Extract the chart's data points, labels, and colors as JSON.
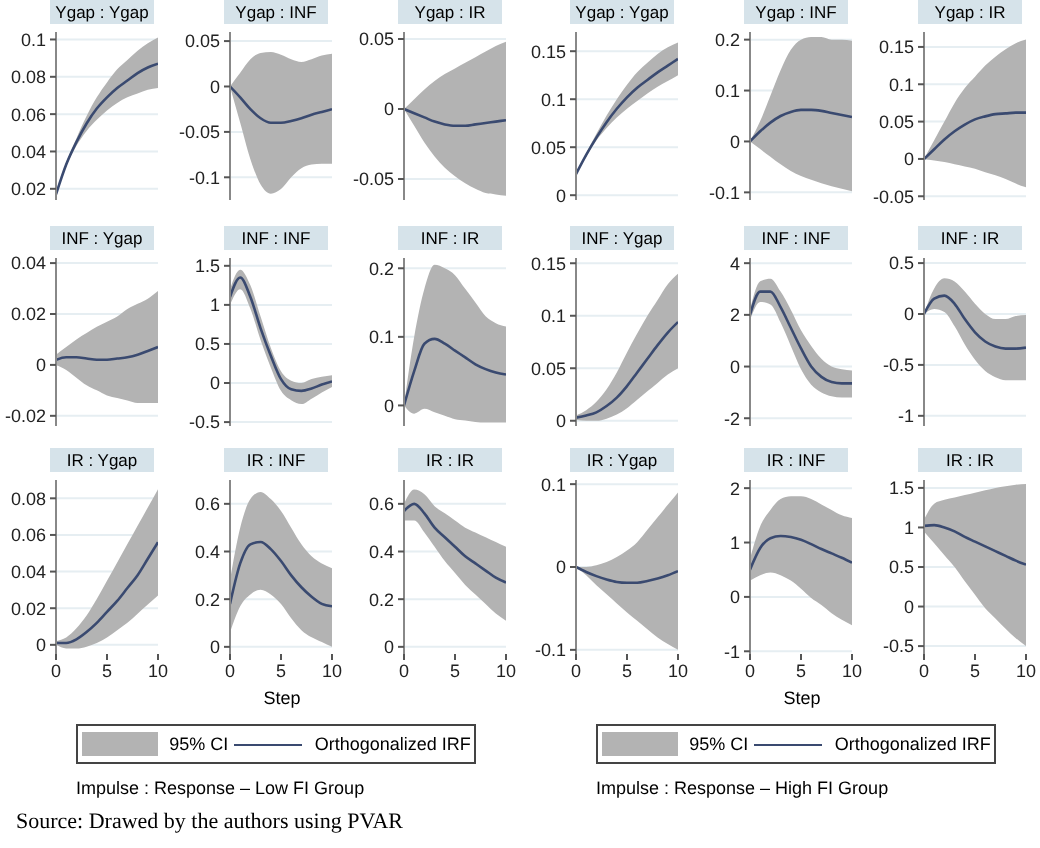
{
  "chart_data": [
    {
      "type": "line",
      "title": "Ygap : Ygap",
      "x": [
        0,
        1,
        2,
        3,
        4,
        5,
        6,
        7,
        8,
        9,
        10
      ],
      "xlim": [
        0,
        10
      ],
      "xticks": [
        0,
        5,
        10
      ],
      "ylim": [
        0.014,
        0.104
      ],
      "yticks": [
        0.02,
        0.04,
        0.06,
        0.08,
        0.1
      ],
      "grid": "y",
      "tick_labels": "y",
      "series": [
        {
          "color": "#3a4a70",
          "values": [
            0.017,
            0.033,
            0.045,
            0.055,
            0.063,
            0.069,
            0.074,
            0.078,
            0.082,
            0.085,
            0.087
          ],
          "lower": [
            0.017,
            0.032,
            0.043,
            0.051,
            0.057,
            0.062,
            0.066,
            0.069,
            0.071,
            0.073,
            0.074
          ],
          "upper": [
            0.017,
            0.034,
            0.047,
            0.059,
            0.069,
            0.077,
            0.084,
            0.089,
            0.094,
            0.098,
            0.101
          ]
        }
      ]
    },
    {
      "type": "line",
      "title": "Ygap : INF",
      "x": [
        0,
        1,
        2,
        3,
        4,
        5,
        6,
        7,
        8,
        9,
        10
      ],
      "xlim": [
        0,
        10
      ],
      "xticks": [
        0,
        5,
        10
      ],
      "ylim": [
        -0.125,
        0.06
      ],
      "yticks": [
        -0.1,
        -0.05,
        0,
        0.05
      ],
      "grid": "y",
      "tick_labels": "y",
      "series": [
        {
          "color": "#3a4a70",
          "values": [
            0,
            -0.012,
            -0.025,
            -0.035,
            -0.04,
            -0.04,
            -0.038,
            -0.035,
            -0.031,
            -0.028,
            -0.025
          ],
          "lower": [
            0,
            -0.04,
            -0.08,
            -0.108,
            -0.118,
            -0.113,
            -0.1,
            -0.09,
            -0.086,
            -0.085,
            -0.085
          ],
          "upper": [
            0,
            0.015,
            0.03,
            0.037,
            0.038,
            0.035,
            0.03,
            0.027,
            0.03,
            0.034,
            0.036
          ]
        }
      ]
    },
    {
      "type": "line",
      "title": "Ygap : IR",
      "x": [
        0,
        1,
        2,
        3,
        4,
        5,
        6,
        7,
        8,
        9,
        10
      ],
      "xlim": [
        0,
        10
      ],
      "xticks": [
        0,
        5,
        10
      ],
      "ylim": [
        -0.065,
        0.055
      ],
      "yticks": [
        -0.05,
        0,
        0.05
      ],
      "grid": "y",
      "tick_labels": "y",
      "series": [
        {
          "color": "#3a4a70",
          "values": [
            0,
            -0.003,
            -0.006,
            -0.009,
            -0.011,
            -0.012,
            -0.012,
            -0.011,
            -0.01,
            -0.009,
            -0.008
          ],
          "lower": [
            0,
            -0.012,
            -0.024,
            -0.034,
            -0.042,
            -0.048,
            -0.053,
            -0.057,
            -0.06,
            -0.061,
            -0.062
          ],
          "upper": [
            0,
            0.007,
            0.014,
            0.02,
            0.025,
            0.029,
            0.033,
            0.037,
            0.041,
            0.045,
            0.048
          ]
        }
      ]
    },
    {
      "type": "line",
      "title": "INF : Ygap",
      "x": [
        0,
        1,
        2,
        3,
        4,
        5,
        6,
        7,
        8,
        9,
        10
      ],
      "xlim": [
        0,
        10
      ],
      "xticks": [
        0,
        5,
        10
      ],
      "ylim": [
        -0.024,
        0.042
      ],
      "yticks": [
        -0.02,
        0,
        0.02,
        0.04
      ],
      "grid": "y",
      "tick_labels": "y",
      "series": [
        {
          "color": "#3a4a70",
          "values": [
            0.002,
            0.003,
            0.003,
            0.0025,
            0.002,
            0.002,
            0.0025,
            0.003,
            0.004,
            0.0055,
            0.007
          ],
          "lower": [
            0,
            -0.002,
            -0.005,
            -0.008,
            -0.01,
            -0.012,
            -0.013,
            -0.014,
            -0.015,
            -0.015,
            -0.015
          ],
          "upper": [
            0.004,
            0.007,
            0.01,
            0.0125,
            0.015,
            0.017,
            0.019,
            0.022,
            0.024,
            0.026,
            0.029
          ]
        }
      ]
    },
    {
      "type": "line",
      "title": "INF : INF",
      "x": [
        0,
        1,
        2,
        3,
        4,
        5,
        6,
        7,
        8,
        9,
        10
      ],
      "xlim": [
        0,
        10
      ],
      "xticks": [
        0,
        5,
        10
      ],
      "ylim": [
        -0.55,
        1.6
      ],
      "yticks": [
        -0.5,
        0,
        0.5,
        1,
        1.5
      ],
      "grid": "y",
      "tick_labels": "y",
      "series": [
        {
          "color": "#3a4a70",
          "values": [
            1.1,
            1.35,
            1.1,
            0.7,
            0.35,
            0.05,
            -0.08,
            -0.1,
            -0.07,
            -0.02,
            0.02
          ],
          "lower": [
            1.0,
            1.2,
            0.95,
            0.55,
            0.2,
            -0.1,
            -0.22,
            -0.27,
            -0.2,
            -0.12,
            -0.05
          ],
          "upper": [
            1.2,
            1.45,
            1.25,
            0.85,
            0.45,
            0.15,
            0.03,
            0,
            0.05,
            0.08,
            0.1
          ]
        }
      ]
    },
    {
      "type": "line",
      "title": "INF : IR",
      "x": [
        0,
        1,
        2,
        3,
        4,
        5,
        6,
        7,
        8,
        9,
        10
      ],
      "xlim": [
        0,
        10
      ],
      "xticks": [
        0,
        5,
        10
      ],
      "ylim": [
        -0.03,
        0.215
      ],
      "yticks": [
        0,
        0.1,
        0.2
      ],
      "grid": "y",
      "tick_labels": "y",
      "series": [
        {
          "color": "#3a4a70",
          "values": [
            0,
            0.05,
            0.09,
            0.097,
            0.09,
            0.08,
            0.07,
            0.06,
            0.053,
            0.048,
            0.045
          ],
          "lower": [
            0,
            -0.012,
            -0.005,
            -0.01,
            -0.015,
            -0.02,
            -0.022,
            -0.024,
            -0.025,
            -0.025,
            -0.025
          ],
          "upper": [
            0,
            0.1,
            0.17,
            0.205,
            0.2,
            0.19,
            0.17,
            0.15,
            0.13,
            0.12,
            0.115
          ]
        }
      ]
    },
    {
      "type": "line",
      "title": "IR : Ygap",
      "x": [
        0,
        1,
        2,
        3,
        4,
        5,
        6,
        7,
        8,
        9,
        10
      ],
      "xlim": [
        0,
        10
      ],
      "xticks": [
        0,
        5,
        10
      ],
      "ylim": [
        -0.005,
        0.09
      ],
      "yticks": [
        0,
        0.02,
        0.04,
        0.06,
        0.08
      ],
      "grid": "y",
      "series": [
        {
          "color": "#3a4a70",
          "values": [
            0.001,
            0.001,
            0.003,
            0.007,
            0.012,
            0.018,
            0.024,
            0.031,
            0.038,
            0.047,
            0.056
          ],
          "lower": [
            0,
            -0.002,
            -0.002,
            -0.001,
            0.001,
            0.004,
            0.008,
            0.012,
            0.017,
            0.022,
            0.027
          ],
          "upper": [
            0.002,
            0.004,
            0.009,
            0.016,
            0.025,
            0.035,
            0.045,
            0.055,
            0.065,
            0.075,
            0.085
          ]
        }
      ]
    },
    {
      "type": "line",
      "title": "IR : INF",
      "xlabel": "Step",
      "legend": "bottom",
      "annotations": [
        "95% CI",
        "Impulse : Response – Low FI Group",
        "Source: Drawed by the authors using PVAR"
      ],
      "x": [
        0,
        1,
        2,
        3,
        4,
        5,
        6,
        7,
        8,
        9,
        10
      ],
      "xlim": [
        0,
        10
      ],
      "xticks": [
        0,
        5,
        10
      ],
      "ylim": [
        -0.03,
        0.7
      ],
      "yticks": [
        0,
        0.2,
        0.4,
        0.6
      ],
      "grid": "y",
      "series": [
        {
          "name": "Orthogonalized IRF",
          "color": "#3a4a70",
          "values": [
            0.18,
            0.35,
            0.43,
            0.44,
            0.41,
            0.36,
            0.3,
            0.25,
            0.21,
            0.18,
            0.17
          ],
          "lower": [
            0.06,
            0.17,
            0.22,
            0.24,
            0.22,
            0.18,
            0.12,
            0.07,
            0.04,
            0.02,
            0
          ],
          "upper": [
            0.28,
            0.5,
            0.62,
            0.65,
            0.62,
            0.57,
            0.5,
            0.43,
            0.38,
            0.35,
            0.33
          ]
        }
      ]
    },
    {
      "type": "line",
      "title": "IR : IR",
      "x": [
        0,
        1,
        2,
        3,
        4,
        5,
        6,
        7,
        8,
        9,
        10
      ],
      "xlim": [
        0,
        10
      ],
      "xticks": [
        0,
        5,
        10
      ],
      "ylim": [
        -0.03,
        0.7
      ],
      "yticks": [
        0,
        0.2,
        0.4,
        0.6
      ],
      "grid": "y",
      "series": [
        {
          "color": "#3a4a70",
          "values": [
            0.57,
            0.6,
            0.56,
            0.5,
            0.46,
            0.42,
            0.38,
            0.35,
            0.32,
            0.29,
            0.27
          ],
          "lower": [
            0.53,
            0.53,
            0.48,
            0.42,
            0.36,
            0.31,
            0.26,
            0.22,
            0.18,
            0.14,
            0.11
          ],
          "upper": [
            0.6,
            0.66,
            0.64,
            0.59,
            0.56,
            0.53,
            0.5,
            0.48,
            0.46,
            0.44,
            0.42
          ]
        }
      ]
    },
    {
      "type": "line",
      "title": "Ygap : Ygap",
      "x": [
        0,
        1,
        2,
        3,
        4,
        5,
        6,
        7,
        8,
        9,
        10
      ],
      "xlim": [
        0,
        10
      ],
      "xticks": [
        0,
        5,
        10
      ],
      "ylim": [
        -0.005,
        0.17
      ],
      "yticks": [
        0,
        0.05,
        0.1,
        0.15
      ],
      "grid": "y",
      "tick_labels": "y",
      "series": [
        {
          "color": "#3a4a70",
          "values": [
            0.022,
            0.042,
            0.06,
            0.076,
            0.09,
            0.102,
            0.112,
            0.12,
            0.128,
            0.135,
            0.142
          ],
          "lower": [
            0.022,
            0.04,
            0.057,
            0.07,
            0.081,
            0.09,
            0.098,
            0.106,
            0.113,
            0.119,
            0.125
          ],
          "upper": [
            0.022,
            0.044,
            0.064,
            0.083,
            0.1,
            0.115,
            0.128,
            0.138,
            0.147,
            0.154,
            0.159
          ]
        }
      ]
    },
    {
      "type": "line",
      "title": "Ygap : INF",
      "x": [
        0,
        1,
        2,
        3,
        4,
        5,
        6,
        7,
        8,
        9,
        10
      ],
      "xlim": [
        0,
        10
      ],
      "xticks": [
        0,
        5,
        10
      ],
      "ylim": [
        -0.115,
        0.215
      ],
      "yticks": [
        -0.1,
        0,
        0.1,
        0.2
      ],
      "grid": "y",
      "tick_labels": "y",
      "series": [
        {
          "color": "#3a4a70",
          "values": [
            0,
            0.02,
            0.037,
            0.05,
            0.058,
            0.062,
            0.062,
            0.06,
            0.056,
            0.052,
            0.048
          ],
          "lower": [
            0,
            -0.015,
            -0.03,
            -0.045,
            -0.058,
            -0.068,
            -0.075,
            -0.082,
            -0.088,
            -0.093,
            -0.098
          ],
          "upper": [
            0,
            0.04,
            0.09,
            0.14,
            0.18,
            0.2,
            0.205,
            0.205,
            0.2,
            0.2,
            0.198
          ]
        }
      ]
    },
    {
      "type": "line",
      "title": "Ygap : IR",
      "x": [
        0,
        1,
        2,
        3,
        4,
        5,
        6,
        7,
        8,
        9,
        10
      ],
      "xlim": [
        0,
        10
      ],
      "xticks": [
        0,
        5,
        10
      ],
      "ylim": [
        -0.055,
        0.17
      ],
      "yticks": [
        -0.05,
        0,
        0.05,
        0.1,
        0.15
      ],
      "grid": "y",
      "tick_labels": "y",
      "series": [
        {
          "color": "#3a4a70",
          "values": [
            0,
            0.013,
            0.026,
            0.037,
            0.046,
            0.053,
            0.057,
            0.06,
            0.061,
            0.062,
            0.062
          ],
          "lower": [
            0,
            -0.002,
            -0.004,
            -0.007,
            -0.01,
            -0.013,
            -0.018,
            -0.022,
            -0.027,
            -0.033,
            -0.038
          ],
          "upper": [
            0,
            0.025,
            0.05,
            0.075,
            0.095,
            0.11,
            0.125,
            0.137,
            0.147,
            0.155,
            0.16
          ]
        }
      ]
    },
    {
      "type": "line",
      "title": "INF : Ygap",
      "x": [
        0,
        1,
        2,
        3,
        4,
        5,
        6,
        7,
        8,
        9,
        10
      ],
      "xlim": [
        0,
        10
      ],
      "xticks": [
        0,
        5,
        10
      ],
      "ylim": [
        -0.005,
        0.155
      ],
      "yticks": [
        0,
        0.05,
        0.1,
        0.15
      ],
      "grid": "y",
      "tick_labels": "y",
      "series": [
        {
          "color": "#3a4a70",
          "values": [
            0.003,
            0.005,
            0.008,
            0.014,
            0.022,
            0.033,
            0.046,
            0.059,
            0.072,
            0.084,
            0.094
          ],
          "lower": [
            0.001,
            0,
            0,
            0.002,
            0.006,
            0.012,
            0.02,
            0.028,
            0.036,
            0.044,
            0.05
          ],
          "upper": [
            0.005,
            0.01,
            0.018,
            0.03,
            0.046,
            0.065,
            0.083,
            0.1,
            0.115,
            0.13,
            0.14
          ]
        }
      ]
    },
    {
      "type": "line",
      "title": "INF : INF",
      "x": [
        0,
        1,
        2,
        3,
        4,
        5,
        6,
        7,
        8,
        9,
        10
      ],
      "xlim": [
        0,
        10
      ],
      "xticks": [
        0,
        5,
        10
      ],
      "ylim": [
        -2.3,
        4.2
      ],
      "yticks": [
        -2,
        0,
        2,
        4
      ],
      "grid": "y",
      "tick_labels": "y",
      "series": [
        {
          "color": "#3a4a70",
          "values": [
            2.0,
            2.9,
            2.9,
            2.3,
            1.5,
            0.7,
            0,
            -0.4,
            -0.6,
            -0.65,
            -0.65
          ],
          "lower": [
            1.8,
            2.5,
            2.4,
            1.7,
            0.8,
            -0.1,
            -0.7,
            -1.0,
            -1.15,
            -1.2,
            -1.2
          ],
          "upper": [
            2.2,
            3.3,
            3.4,
            2.9,
            2.2,
            1.4,
            0.8,
            0.3,
            0,
            -0.1,
            -0.15
          ]
        }
      ]
    },
    {
      "type": "line",
      "title": "INF : IR",
      "x": [
        0,
        1,
        2,
        3,
        4,
        5,
        6,
        7,
        8,
        9,
        10
      ],
      "xlim": [
        0,
        10
      ],
      "xticks": [
        0,
        5,
        10
      ],
      "ylim": [
        -1.1,
        0.55
      ],
      "yticks": [
        -1,
        -0.5,
        0,
        0.5
      ],
      "grid": "y",
      "tick_labels": "y",
      "series": [
        {
          "color": "#3a4a70",
          "values": [
            0,
            0.15,
            0.18,
            0.1,
            -0.05,
            -0.18,
            -0.27,
            -0.32,
            -0.34,
            -0.34,
            -0.33
          ],
          "lower": [
            0,
            0.05,
            0.02,
            -0.12,
            -0.3,
            -0.45,
            -0.56,
            -0.62,
            -0.65,
            -0.65,
            -0.65
          ],
          "upper": [
            0,
            0.25,
            0.35,
            0.32,
            0.22,
            0.1,
            0,
            -0.05,
            -0.05,
            -0.02,
            -0.01
          ]
        }
      ]
    },
    {
      "type": "line",
      "title": "IR : Ygap",
      "x": [
        0,
        1,
        2,
        3,
        4,
        5,
        6,
        7,
        8,
        9,
        10
      ],
      "xlim": [
        0,
        10
      ],
      "xticks": [
        0,
        5,
        10
      ],
      "ylim": [
        -0.105,
        0.105
      ],
      "yticks": [
        -0.1,
        0,
        0.1
      ],
      "grid": "y",
      "series": [
        {
          "color": "#3a4a70",
          "values": [
            0,
            -0.006,
            -0.011,
            -0.015,
            -0.018,
            -0.019,
            -0.019,
            -0.017,
            -0.014,
            -0.01,
            -0.005
          ],
          "lower": [
            0,
            -0.01,
            -0.022,
            -0.033,
            -0.044,
            -0.055,
            -0.065,
            -0.075,
            -0.085,
            -0.093,
            -0.1
          ],
          "upper": [
            0,
            0,
            0.002,
            0.006,
            0.012,
            0.02,
            0.03,
            0.045,
            0.06,
            0.075,
            0.09
          ]
        }
      ]
    },
    {
      "type": "line",
      "title": "IR : INF",
      "xlabel": "Step",
      "legend": "bottom",
      "annotations": [
        "95% CI",
        "Impulse : Response – High FI Group"
      ],
      "x": [
        0,
        1,
        2,
        3,
        4,
        5,
        6,
        7,
        8,
        9,
        10
      ],
      "xlim": [
        0,
        10
      ],
      "xticks": [
        0,
        5,
        10
      ],
      "ylim": [
        -1.05,
        2.15
      ],
      "yticks": [
        -1,
        0,
        1,
        2
      ],
      "grid": "y",
      "series": [
        {
          "name": "Orthogonalized IRF",
          "color": "#3a4a70",
          "values": [
            0.5,
            0.9,
            1.08,
            1.12,
            1.1,
            1.05,
            0.97,
            0.88,
            0.8,
            0.72,
            0.63
          ],
          "lower": [
            0.3,
            0.4,
            0.45,
            0.4,
            0.3,
            0.15,
            -0.02,
            -0.15,
            -0.3,
            -0.42,
            -0.52
          ],
          "upper": [
            0.7,
            1.3,
            1.6,
            1.8,
            1.85,
            1.85,
            1.8,
            1.7,
            1.6,
            1.5,
            1.45
          ]
        }
      ]
    },
    {
      "type": "line",
      "title": "IR : IR",
      "x": [
        0,
        1,
        2,
        3,
        4,
        5,
        6,
        7,
        8,
        9,
        10
      ],
      "xlim": [
        0,
        10
      ],
      "xticks": [
        0,
        5,
        10
      ],
      "ylim": [
        -0.6,
        1.6
      ],
      "yticks": [
        -0.5,
        0,
        0.5,
        1,
        1.5
      ],
      "grid": "y",
      "series": [
        {
          "color": "#3a4a70",
          "values": [
            1.02,
            1.03,
            1.0,
            0.95,
            0.88,
            0.82,
            0.76,
            0.7,
            0.64,
            0.58,
            0.53
          ],
          "lower": [
            0.95,
            0.8,
            0.65,
            0.5,
            0.32,
            0.15,
            -0.02,
            -0.15,
            -0.28,
            -0.4,
            -0.5
          ],
          "upper": [
            1.1,
            1.3,
            1.35,
            1.38,
            1.41,
            1.44,
            1.47,
            1.5,
            1.52,
            1.54,
            1.55
          ]
        }
      ]
    }
  ]
}
